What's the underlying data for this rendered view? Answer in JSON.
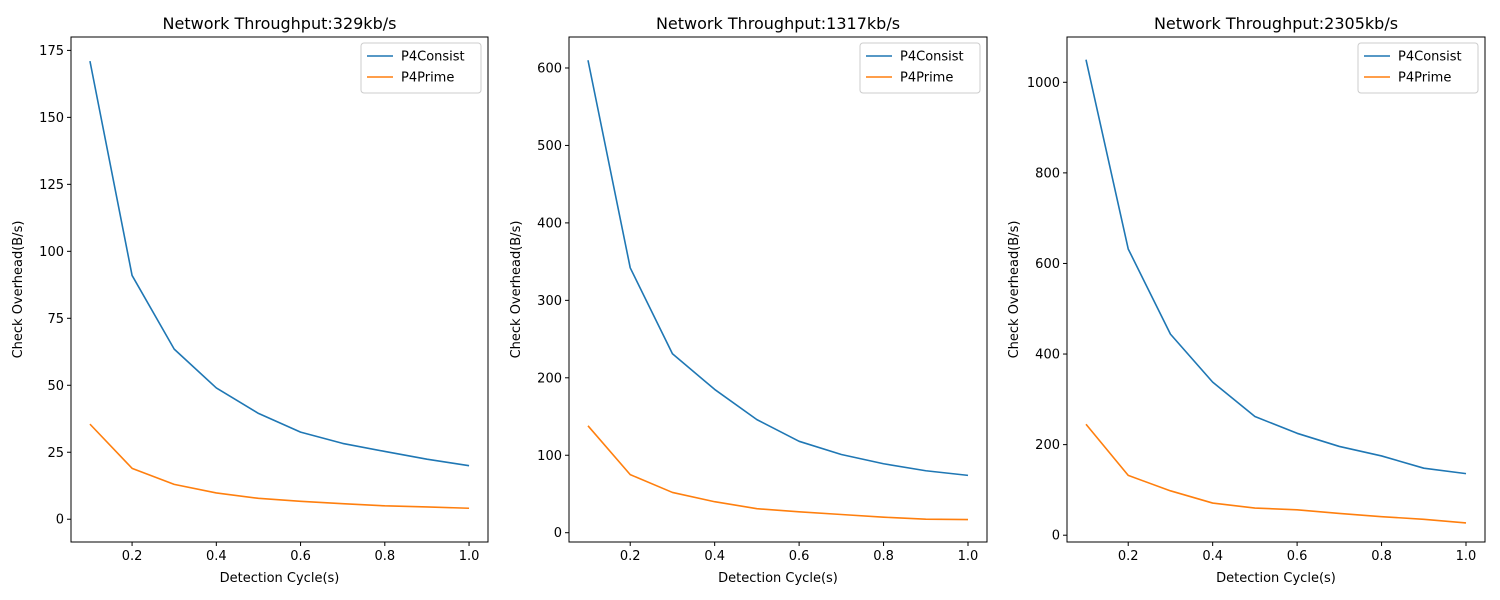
{
  "figure": {
    "background": "#ffffff"
  },
  "chart_data": [
    {
      "type": "line",
      "title": "Network Throughput:329kb/s",
      "xlabel": "Detection Cycle(s)",
      "ylabel": "Check Overhead(B/s)",
      "xlim": [
        0.055,
        1.045
      ],
      "ylim": [
        -8.5,
        180
      ],
      "xticks": [
        0.2,
        0.4,
        0.6,
        0.8,
        1.0
      ],
      "xtick_labels": [
        "0.2",
        "0.4",
        "0.6",
        "0.8",
        "1.0"
      ],
      "yticks": [
        0,
        25,
        50,
        75,
        100,
        125,
        150,
        175
      ],
      "ytick_labels": [
        "0",
        "25",
        "50",
        "75",
        "100",
        "125",
        "150",
        "175"
      ],
      "grid": false,
      "legend_position": "top-right",
      "x": [
        0.1,
        0.2,
        0.3,
        0.4,
        0.5,
        0.6,
        0.7,
        0.8,
        0.9,
        1.0
      ],
      "series": [
        {
          "name": "P4Consist",
          "color": "#1f77b4",
          "values": [
            171,
            91,
            63.5,
            49,
            39.5,
            32.5,
            28.3,
            25.3,
            22.4,
            20
          ]
        },
        {
          "name": "P4Prime",
          "color": "#ff7f0e",
          "values": [
            35.5,
            19,
            13,
            9.8,
            7.8,
            6.7,
            5.8,
            5,
            4.6,
            4.1
          ]
        }
      ]
    },
    {
      "type": "line",
      "title": "Network Throughput:1317kb/s",
      "xlabel": "Detection Cycle(s)",
      "ylabel": "Check Overhead(B/s)",
      "xlim": [
        0.055,
        1.045
      ],
      "ylim": [
        -12,
        640
      ],
      "xticks": [
        0.2,
        0.4,
        0.6,
        0.8,
        1.0
      ],
      "xtick_labels": [
        "0.2",
        "0.4",
        "0.6",
        "0.8",
        "1.0"
      ],
      "yticks": [
        0,
        100,
        200,
        300,
        400,
        500,
        600
      ],
      "ytick_labels": [
        "0",
        "100",
        "200",
        "300",
        "400",
        "500",
        "600"
      ],
      "grid": false,
      "legend_position": "top-right",
      "x": [
        0.1,
        0.2,
        0.3,
        0.4,
        0.5,
        0.6,
        0.7,
        0.8,
        0.9,
        1.0
      ],
      "series": [
        {
          "name": "P4Consist",
          "color": "#1f77b4",
          "values": [
            610,
            342,
            231,
            185,
            146,
            118,
            101,
            89,
            80,
            74
          ]
        },
        {
          "name": "P4Prime",
          "color": "#ff7f0e",
          "values": [
            138,
            75,
            52,
            40,
            31,
            27,
            23.5,
            20,
            17.5,
            17
          ]
        }
      ]
    },
    {
      "type": "line",
      "title": "Network Throughput:2305kb/s",
      "xlabel": "Detection Cycle(s)",
      "ylabel": "Check Overhead(B/s)",
      "xlim": [
        0.055,
        1.045
      ],
      "ylim": [
        -15,
        1100
      ],
      "xticks": [
        0.2,
        0.4,
        0.6,
        0.8,
        1.0
      ],
      "xtick_labels": [
        "0.2",
        "0.4",
        "0.6",
        "0.8",
        "1.0"
      ],
      "yticks": [
        0,
        200,
        400,
        600,
        800,
        1000
      ],
      "ytick_labels": [
        "0",
        "200",
        "400",
        "600",
        "800",
        "1000"
      ],
      "grid": false,
      "legend_position": "top-right",
      "x": [
        0.1,
        0.2,
        0.3,
        0.4,
        0.5,
        0.6,
        0.7,
        0.8,
        0.9,
        1.0
      ],
      "series": [
        {
          "name": "P4Consist",
          "color": "#1f77b4",
          "values": [
            1050,
            632,
            444,
            338,
            262,
            225,
            196,
            175,
            148,
            136
          ]
        },
        {
          "name": "P4Prime",
          "color": "#ff7f0e",
          "values": [
            245,
            132,
            98,
            71,
            60,
            56,
            48,
            41,
            35,
            27
          ]
        }
      ]
    }
  ]
}
